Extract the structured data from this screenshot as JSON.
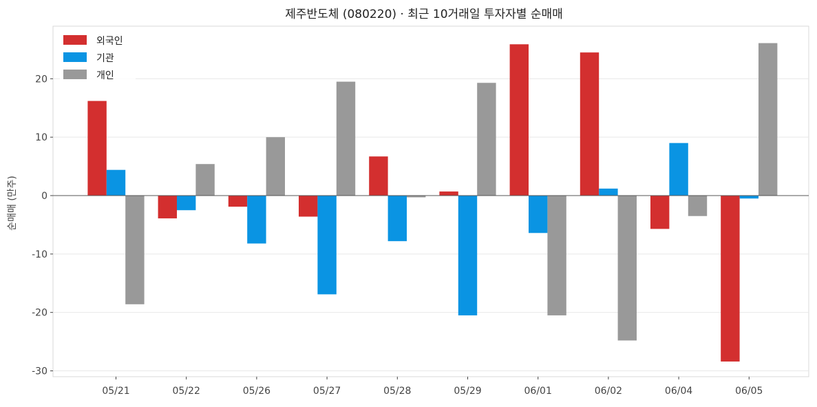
{
  "chart_data": {
    "type": "bar",
    "title": "제주반도체 (080220) · 최근 10거래일 투자자별 순매매",
    "xlabel": "",
    "ylabel": "순매매 (만주)",
    "categories": [
      "05/21",
      "05/22",
      "05/26",
      "05/27",
      "05/28",
      "05/29",
      "06/01",
      "06/02",
      "06/04",
      "06/05"
    ],
    "series": [
      {
        "name": "외국인",
        "color": "#d32f2f",
        "values": [
          16.2,
          -3.9,
          -1.9,
          -3.6,
          6.7,
          0.7,
          25.9,
          24.5,
          -5.7,
          -28.4
        ]
      },
      {
        "name": "기관",
        "color": "#0a94e3",
        "values": [
          4.4,
          -2.5,
          -8.2,
          -16.9,
          -7.8,
          -20.5,
          -6.4,
          1.2,
          9.0,
          -0.5
        ]
      },
      {
        "name": "개인",
        "color": "#999999",
        "values": [
          -18.6,
          5.4,
          10.0,
          19.5,
          -0.3,
          19.3,
          -20.5,
          -24.8,
          -3.5,
          26.1
        ]
      }
    ],
    "ylim": [
      -31,
      29
    ],
    "yticks": [
      "20",
      "10",
      "0",
      "-10",
      "-20",
      "-30"
    ],
    "ytick_values": [
      20,
      10,
      0,
      -10,
      -20,
      -30
    ],
    "grid": true,
    "zero_line": true,
    "legend_position": "top-left"
  }
}
